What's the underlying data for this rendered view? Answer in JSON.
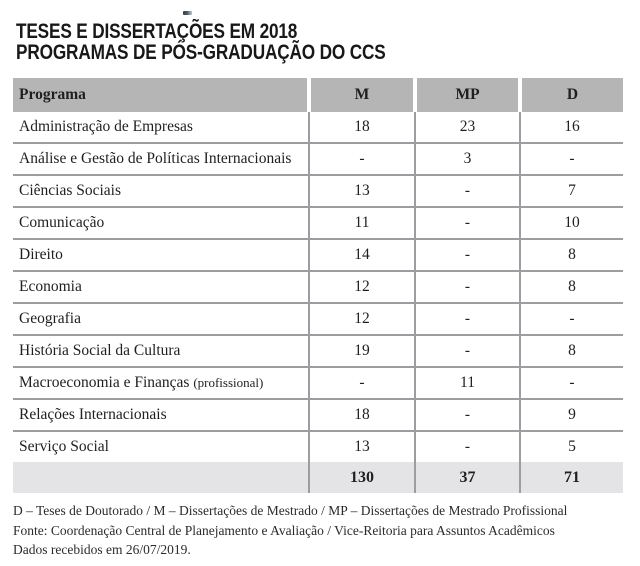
{
  "title": {
    "line1": "TESES E DISSERTAÇÕES EM 2018",
    "line2": "PROGRAMAS DE PÓS-GRADUAÇÃO DO CCS"
  },
  "table": {
    "columns": [
      "Programa",
      "M",
      "MP",
      "D"
    ],
    "rows": [
      {
        "programa": "Administração de Empresas",
        "m": "18",
        "mp": "23",
        "d": "16"
      },
      {
        "programa": "Análise e Gestão de Políticas Internacionais",
        "m": "-",
        "mp": "3",
        "d": "-"
      },
      {
        "programa": "Ciências Sociais",
        "m": "13",
        "mp": "-",
        "d": "7"
      },
      {
        "programa": "Comunicação",
        "m": "11",
        "mp": "-",
        "d": "10"
      },
      {
        "programa": "Direito",
        "m": "14",
        "mp": "-",
        "d": "8"
      },
      {
        "programa": "Economia",
        "m": "12",
        "mp": "-",
        "d": "8"
      },
      {
        "programa": "Geografia",
        "m": "12",
        "mp": "-",
        "d": "-"
      },
      {
        "programa": "História Social da Cultura",
        "m": "19",
        "mp": "-",
        "d": "8"
      },
      {
        "programa": "Macroeconomia e Finanças",
        "programa_note": "(profissional)",
        "m": "-",
        "mp": "11",
        "d": "-"
      },
      {
        "programa": "Relações Internacionais",
        "m": "18",
        "mp": "-",
        "d": "9"
      },
      {
        "programa": "Serviço Social",
        "m": "13",
        "mp": "-",
        "d": "5"
      }
    ],
    "totals": {
      "m": "130",
      "mp": "37",
      "d": "71"
    }
  },
  "footer": {
    "legend": "D – Teses de Doutorado / M – Dissertações de Mestrado / MP – Dissertações de Mestrado Profissional",
    "fonte": "Fonte: Coordenação Central de Planejamento e Avaliação / Vice-Reitoria para Assuntos Acadêmicos",
    "dados": "Dados recebidos em 26/07/2019."
  },
  "colors": {
    "header_bg": "#b5b5b5",
    "total_row_bg": "#e4e4e6",
    "grid_line": "#9d9da1",
    "text": "#1f1f23"
  }
}
